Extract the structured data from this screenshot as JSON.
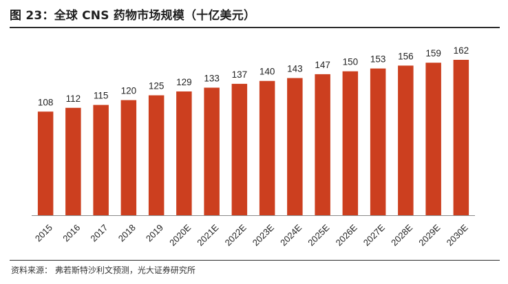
{
  "header": {
    "title": "图 23：全球 CNS 药物市场规模（十亿美元）"
  },
  "footer": {
    "source": "资料来源：   弗若斯特沙利文预测，光大证券研究所"
  },
  "colors": {
    "bar": "#cc3f1f",
    "axis": "#8a8a8a",
    "rule": "#2a2a2a"
  },
  "chart_data": {
    "type": "bar",
    "title": "全球 CNS 药物市场规模（十亿美元）",
    "xlabel": "",
    "ylabel": "",
    "categories": [
      "2015",
      "2016",
      "2017",
      "2018",
      "2019",
      "2020E",
      "2021E",
      "2022E",
      "2023E",
      "2024E",
      "2025E",
      "2026E",
      "2027E",
      "2028E",
      "2029E",
      "2030E"
    ],
    "values": [
      108,
      112,
      115,
      120,
      125,
      129,
      133,
      137,
      140,
      143,
      147,
      150,
      153,
      156,
      159,
      162
    ],
    "ylim": [
      0,
      170
    ],
    "grid": false,
    "legend": "none"
  }
}
